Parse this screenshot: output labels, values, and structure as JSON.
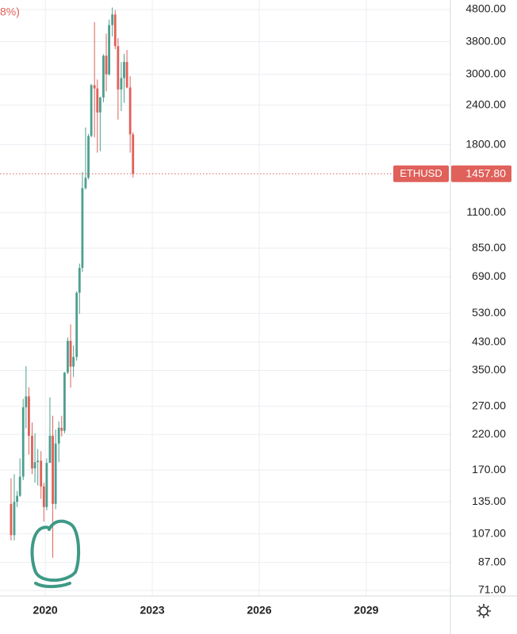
{
  "chart_data": {
    "type": "candlestick",
    "header_fragment": "8%)",
    "symbol": "ETHUSD",
    "last_price": {
      "value": 1457.8,
      "label": "1457.80"
    },
    "log_scale": true,
    "grid": true,
    "up_color": "#4e9f8e",
    "down_color": "#e0605a",
    "xlim": [
      2018.73,
      2031.36
    ],
    "xticks": [
      2020,
      2023,
      2026,
      2029
    ],
    "ylim": [
      68.2,
      5143
    ],
    "yticks": [
      {
        "value": 71,
        "label": "71.00"
      },
      {
        "value": 87,
        "label": "87.00"
      },
      {
        "value": 107,
        "label": "107.00"
      },
      {
        "value": 135,
        "label": "135.00"
      },
      {
        "value": 170,
        "label": "170.00"
      },
      {
        "value": 220,
        "label": "220.00"
      },
      {
        "value": 270,
        "label": "270.00"
      },
      {
        "value": 350,
        "label": "350.00"
      },
      {
        "value": 430,
        "label": "430.00"
      },
      {
        "value": 530,
        "label": "530.00"
      },
      {
        "value": 690,
        "label": "690.00"
      },
      {
        "value": 850,
        "label": "850.00"
      },
      {
        "value": 1100,
        "label": "1100.00"
      },
      {
        "value": 1800,
        "label": "1800.00"
      },
      {
        "value": 2400,
        "label": "2400.00"
      },
      {
        "value": 3000,
        "label": "3000.00"
      },
      {
        "value": 3800,
        "label": "3800.00"
      },
      {
        "value": 4800,
        "label": "4800.00"
      }
    ],
    "x": [
      2019.04,
      2019.13,
      2019.21,
      2019.29,
      2019.38,
      2019.46,
      2019.54,
      2019.63,
      2019.71,
      2019.79,
      2019.88,
      2019.96,
      2020.04,
      2020.13,
      2020.21,
      2020.29,
      2020.38,
      2020.46,
      2020.54,
      2020.63,
      2020.71,
      2020.79,
      2020.88,
      2020.96,
      2021.04,
      2021.13,
      2021.21,
      2021.29,
      2021.38,
      2021.46,
      2021.54,
      2021.63,
      2021.71,
      2021.79,
      2021.88,
      2021.96,
      2022.04,
      2022.13,
      2022.21,
      2022.29,
      2022.38,
      2022.46
    ],
    "open": [
      133,
      106,
      135,
      141,
      162,
      268,
      290,
      218,
      172,
      180,
      182,
      151,
      130,
      179,
      218,
      133,
      206,
      231,
      226,
      345,
      434,
      360,
      386,
      615,
      737,
      1314,
      1417,
      1918,
      2773,
      2707,
      2275,
      2536,
      3433,
      3000,
      4288,
      4630,
      3680,
      2688,
      2920,
      3282,
      2727,
      1940
    ],
    "high": [
      160,
      165,
      146,
      185,
      285,
      361,
      310,
      240,
      222,
      198,
      195,
      155,
      185,
      288,
      252,
      228,
      242,
      252,
      346,
      445,
      489,
      420,
      622,
      760,
      1476,
      2040,
      1945,
      2798,
      4380,
      2890,
      2550,
      3470,
      4030,
      4460,
      4870,
      4780,
      3900,
      3280,
      3480,
      3580,
      2960,
      1970
    ],
    "low": [
      102,
      102,
      130,
      140,
      158,
      230,
      190,
      165,
      155,
      152,
      138,
      117,
      127,
      179,
      90,
      128,
      180,
      217,
      222,
      341,
      309,
      334,
      376,
      528,
      715,
      1300,
      1400,
      1900,
      1900,
      1700,
      1718,
      2450,
      2650,
      2970,
      3950,
      3600,
      2160,
      2300,
      2440,
      2710,
      1700,
      1420
    ],
    "close": [
      106,
      135,
      141,
      162,
      268,
      290,
      218,
      172,
      180,
      182,
      151,
      130,
      179,
      218,
      133,
      206,
      231,
      226,
      345,
      434,
      360,
      386,
      615,
      737,
      1314,
      1417,
      1918,
      2773,
      2707,
      2275,
      2536,
      3433,
      3000,
      4288,
      4630,
      3680,
      2688,
      2920,
      3282,
      2727,
      1940,
      1457.8
    ]
  }
}
